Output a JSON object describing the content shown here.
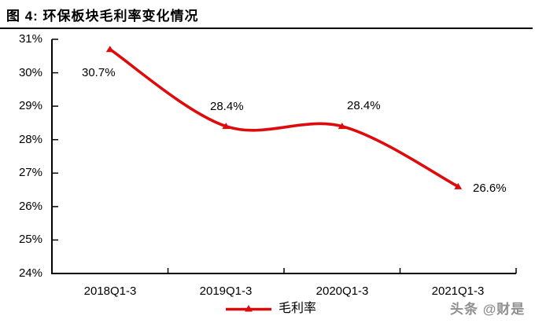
{
  "header": {
    "title": "图 4: 环保板块毛利率变化情况"
  },
  "watermark": "头条 @财是",
  "colors": {
    "series_red": "#dd0b0b",
    "axis_black": "#000000",
    "watermark_gray": "#8f8f8f"
  },
  "chart_data": {
    "type": "line",
    "title": "环保板块毛利率变化情况",
    "categories": [
      "2018Q1-3",
      "2019Q1-3",
      "2020Q1-3",
      "2021Q1-3"
    ],
    "series": [
      {
        "name": "毛利率",
        "values": [
          30.7,
          28.4,
          28.4,
          26.6
        ],
        "color": "#dd0b0b",
        "marker": "triangle",
        "smooth": true
      }
    ],
    "data_labels": [
      "30.7%",
      "28.4%",
      "28.4%",
      "26.6%"
    ],
    "ylim": [
      24,
      31
    ],
    "ytick_step": 1,
    "yticks": [
      "31%",
      "30%",
      "29%",
      "28%",
      "27%",
      "26%",
      "25%",
      "24%"
    ],
    "grid": false,
    "legend_position": "bottom",
    "legend_label": "毛利率"
  }
}
